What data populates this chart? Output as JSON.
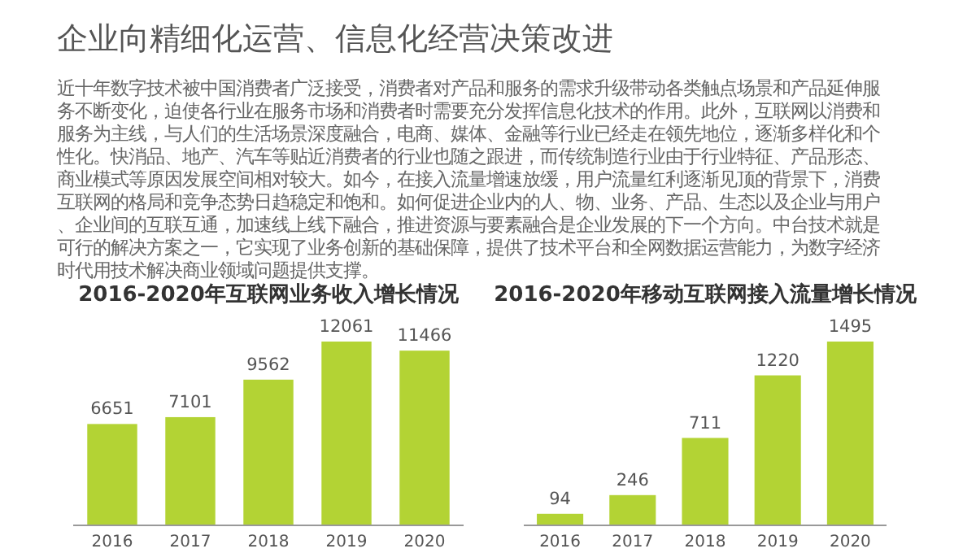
{
  "chart_data": [
    {
      "type": "other",
      "title": "企业向精细化运营、信息化经营决策改进",
      "annotations": [
        "近十年数字技术被中国消费者广泛接受，消费者对产品和服务的需求升级带动各类触点场景和产品延伸服务不断变化，迫使各行业在服务市场和消费者时需要充分发挥信息化技术的作用。此外，互联网以消费和服务为主线，与人们的生活场景深度融合，电商、媒体、金融等行业已经走在领先地位，逐渐多样化和个性化。快消品、地产、汽车等贴近消费者的行业也随之跟进，而传统制造行业由于行业特征、产品形态、商业模式等原因发展空间相对较大。如今，在接入流量增速放缓，用户流量红利逐渐见顶的背景下，消费互联网的格局和竞争态势日趋稳定和饱和。如何促进企业内的人、物、业务、产品、生态以及企业与用户、企业间的互联互通，加速线上线下融合，推进资源与要素融合是企业发展的下一个方向。中台技术就是可行的解决方案之一，它实现了业务创新的基础保障，提供了技术平台和全网数据运营能力，为数字经济时代用技术解决商业领域问题提供支撑。"
      ]
    },
    {
      "type": "bar",
      "title": "2016-2020年互联网业务收入增长情况",
      "categories": [
        "2016",
        "2017",
        "2018",
        "2019",
        "2020"
      ],
      "values": [
        6651,
        7101,
        9562,
        12061,
        11466
      ],
      "color": "#b3d334",
      "data_labels": true
    },
    {
      "type": "bar",
      "title": "2016-2020年移动互联网接入流量增长情况",
      "categories": [
        "2016",
        "2017",
        "2018",
        "2019",
        "2020"
      ],
      "values": [
        94,
        246,
        711,
        1220,
        1495
      ],
      "color": "#b3d334",
      "data_labels": true
    }
  ]
}
